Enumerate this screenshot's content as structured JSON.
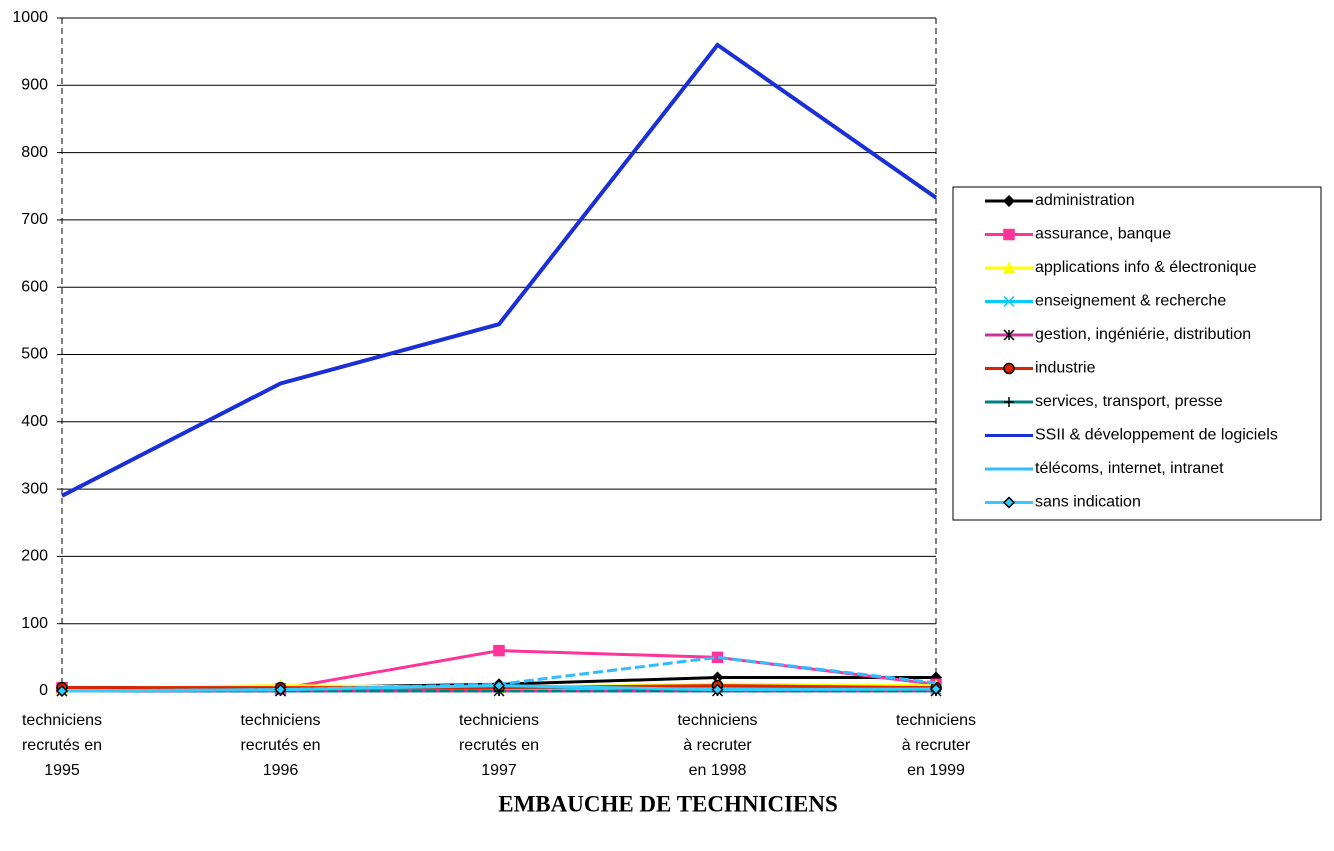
{
  "chart_data": {
    "type": "line",
    "title": "EMBAUCHE DE TECHNICIENS",
    "categories": [
      "techniciens\nrecrutés en\n1995",
      "techniciens\nrecrutés en\n1996",
      "techniciens\nrecrutés en\n1997",
      "techniciens\nà recruter\nen 1998",
      "techniciens\nà recruter\nen 1999"
    ],
    "ylim": [
      0,
      1000
    ],
    "yticks": [
      0,
      100,
      200,
      300,
      400,
      500,
      600,
      700,
      800,
      900,
      1000
    ],
    "grid": true,
    "legend": "right",
    "series": [
      {
        "name": "administration",
        "color": "#000000",
        "marker": "diamond",
        "values": [
          5,
          5,
          10,
          20,
          20
        ]
      },
      {
        "name": "assurance, banque",
        "color": "#ff3399",
        "marker": "square",
        "values": [
          5,
          3,
          60,
          50,
          10
        ]
      },
      {
        "name": "applications info & électronique",
        "color": "#ffff00",
        "marker": "triangle",
        "values": [
          3,
          8,
          5,
          10,
          8
        ]
      },
      {
        "name": "enseignement & recherche",
        "color": "#00ccff",
        "marker": "x",
        "values": [
          0,
          0,
          5,
          5,
          3
        ]
      },
      {
        "name": "gestion, ingéniérie, distribution",
        "color": "#cc3399",
        "marker": "star",
        "values": [
          0,
          0,
          0,
          0,
          0
        ]
      },
      {
        "name": "industrie",
        "color": "#dd2200",
        "marker": "circle",
        "values": [
          5,
          5,
          5,
          8,
          5
        ]
      },
      {
        "name": "services, transport, presse",
        "color": "#008080",
        "marker": "plus",
        "values": [
          0,
          0,
          0,
          0,
          0
        ]
      },
      {
        "name": "SSII & développement de logiciels",
        "color": "#1a2fd6",
        "marker": "none",
        "values": [
          290,
          457,
          545,
          960,
          733
        ]
      },
      {
        "name": "télécoms, internet, intranet",
        "color": "#33bbff",
        "marker": "none",
        "values": [
          0,
          2,
          10,
          50,
          12
        ]
      },
      {
        "name": "sans indication",
        "color": "#33ccff",
        "marker": "diamond",
        "values": [
          0,
          2,
          8,
          2,
          3
        ]
      }
    ]
  }
}
